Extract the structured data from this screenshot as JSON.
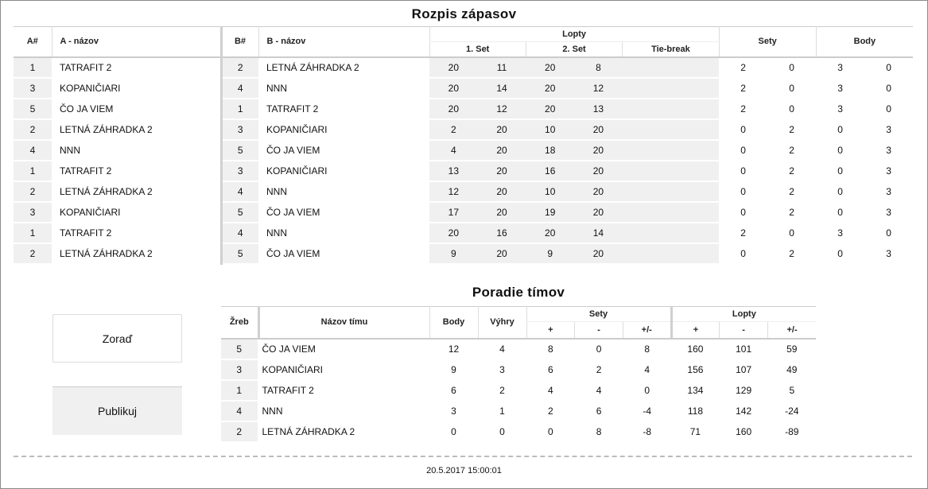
{
  "schedule": {
    "title": "Rozpis zápasov",
    "headers": {
      "a_num": "A#",
      "a_name": "A - názov",
      "b_num": "B#",
      "b_name": "B - názov",
      "lopty": "Lopty",
      "set1": "1. Set",
      "set2": "2. Set",
      "tiebreak": "Tie-break",
      "sety": "Sety",
      "body": "Body"
    },
    "rows": [
      {
        "a": "1",
        "an": "TATRAFIT 2",
        "b": "2",
        "bn": "LETNÁ ZÁHRADKA 2",
        "s1": [
          "20",
          "11"
        ],
        "s2": [
          "20",
          "8"
        ],
        "tb": [
          "",
          ""
        ],
        "sety": [
          "2",
          "0"
        ],
        "body": [
          "3",
          "0"
        ]
      },
      {
        "a": "3",
        "an": "KOPANIČIARI",
        "b": "4",
        "bn": "NNN",
        "s1": [
          "20",
          "14"
        ],
        "s2": [
          "20",
          "12"
        ],
        "tb": [
          "",
          ""
        ],
        "sety": [
          "2",
          "0"
        ],
        "body": [
          "3",
          "0"
        ]
      },
      {
        "a": "5",
        "an": "ČO JA VIEM",
        "b": "1",
        "bn": "TATRAFIT 2",
        "s1": [
          "20",
          "12"
        ],
        "s2": [
          "20",
          "13"
        ],
        "tb": [
          "",
          ""
        ],
        "sety": [
          "2",
          "0"
        ],
        "body": [
          "3",
          "0"
        ]
      },
      {
        "a": "2",
        "an": "LETNÁ ZÁHRADKA 2",
        "b": "3",
        "bn": "KOPANIČIARI",
        "s1": [
          "2",
          "20"
        ],
        "s2": [
          "10",
          "20"
        ],
        "tb": [
          "",
          ""
        ],
        "sety": [
          "0",
          "2"
        ],
        "body": [
          "0",
          "3"
        ]
      },
      {
        "a": "4",
        "an": "NNN",
        "b": "5",
        "bn": "ČO JA VIEM",
        "s1": [
          "4",
          "20"
        ],
        "s2": [
          "18",
          "20"
        ],
        "tb": [
          "",
          ""
        ],
        "sety": [
          "0",
          "2"
        ],
        "body": [
          "0",
          "3"
        ]
      },
      {
        "a": "1",
        "an": "TATRAFIT 2",
        "b": "3",
        "bn": "KOPANIČIARI",
        "s1": [
          "13",
          "20"
        ],
        "s2": [
          "16",
          "20"
        ],
        "tb": [
          "",
          ""
        ],
        "sety": [
          "0",
          "2"
        ],
        "body": [
          "0",
          "3"
        ]
      },
      {
        "a": "2",
        "an": "LETNÁ ZÁHRADKA 2",
        "b": "4",
        "bn": "NNN",
        "s1": [
          "12",
          "20"
        ],
        "s2": [
          "10",
          "20"
        ],
        "tb": [
          "",
          ""
        ],
        "sety": [
          "0",
          "2"
        ],
        "body": [
          "0",
          "3"
        ]
      },
      {
        "a": "3",
        "an": "KOPANIČIARI",
        "b": "5",
        "bn": "ČO JA VIEM",
        "s1": [
          "17",
          "20"
        ],
        "s2": [
          "19",
          "20"
        ],
        "tb": [
          "",
          ""
        ],
        "sety": [
          "0",
          "2"
        ],
        "body": [
          "0",
          "3"
        ]
      },
      {
        "a": "1",
        "an": "TATRAFIT 2",
        "b": "4",
        "bn": "NNN",
        "s1": [
          "20",
          "16"
        ],
        "s2": [
          "20",
          "14"
        ],
        "tb": [
          "",
          ""
        ],
        "sety": [
          "2",
          "0"
        ],
        "body": [
          "3",
          "0"
        ]
      },
      {
        "a": "2",
        "an": "LETNÁ ZÁHRADKA 2",
        "b": "5",
        "bn": "ČO JA VIEM",
        "s1": [
          "9",
          "20"
        ],
        "s2": [
          "9",
          "20"
        ],
        "tb": [
          "",
          ""
        ],
        "sety": [
          "0",
          "2"
        ],
        "body": [
          "0",
          "3"
        ]
      }
    ]
  },
  "standings": {
    "title": "Poradie tímov",
    "headers": {
      "zreb": "Žreb",
      "name": "Názov tímu",
      "body": "Body",
      "vyhry": "Výhry",
      "sety": "Sety",
      "lopty": "Lopty",
      "plus": "+",
      "minus": "-",
      "diff": "+/-"
    },
    "rows": [
      [
        "5",
        "ČO JA VIEM",
        "12",
        "4",
        "8",
        "0",
        "8",
        "160",
        "101",
        "59"
      ],
      [
        "3",
        "KOPANIČIARI",
        "9",
        "3",
        "6",
        "2",
        "4",
        "156",
        "107",
        "49"
      ],
      [
        "1",
        "TATRAFIT 2",
        "6",
        "2",
        "4",
        "4",
        "0",
        "134",
        "129",
        "5"
      ],
      [
        "4",
        "NNN",
        "3",
        "1",
        "2",
        "6",
        "-4",
        "118",
        "142",
        "-24"
      ],
      [
        "2",
        "LETNÁ ZÁHRADKA 2",
        "0",
        "0",
        "0",
        "8",
        "-8",
        "71",
        "160",
        "-89"
      ]
    ]
  },
  "buttons": {
    "sort": "Zoraď",
    "publish": "Publikuj"
  },
  "footer": {
    "timestamp": "20.5.2017 15:00:01"
  }
}
